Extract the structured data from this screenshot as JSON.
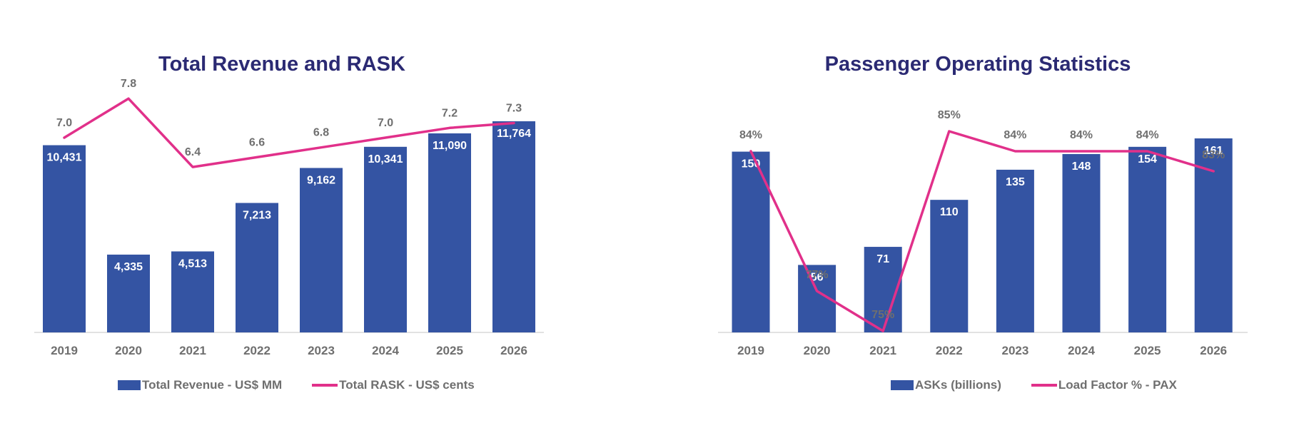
{
  "chart_data": [
    {
      "type": "bar",
      "title": "Total Revenue and RASK",
      "categories": [
        "2019",
        "2020",
        "2021",
        "2022",
        "2023",
        "2024",
        "2025",
        "2026"
      ],
      "series": [
        {
          "name": "Total Revenue - US$ MM",
          "type": "bar",
          "values": [
            10431,
            4335,
            4513,
            7213,
            9162,
            10341,
            11090,
            11764
          ],
          "labels": [
            "10,431",
            "4,335",
            "4,513",
            "7,213",
            "9,162",
            "10,341",
            "11,090",
            "11,764"
          ]
        },
        {
          "name": "Total RASK - US$ cents",
          "type": "line",
          "values": [
            7.0,
            7.8,
            6.4,
            6.6,
            6.8,
            7.0,
            7.2,
            7.3
          ],
          "labels": [
            "7.0",
            "7.8",
            "6.4",
            "6.6",
            "6.8",
            "7.0",
            "7.2",
            "7.3"
          ]
        }
      ],
      "legend_position": "bottom",
      "grid": false,
      "colors": {
        "bar": "#3454a3",
        "line": "#e1308a"
      }
    },
    {
      "type": "bar",
      "title": "Passenger Operating Statistics",
      "categories": [
        "2019",
        "2020",
        "2021",
        "2022",
        "2023",
        "2024",
        "2025",
        "2026"
      ],
      "series": [
        {
          "name": "ASKs (billions)",
          "type": "bar",
          "values": [
            150,
            56,
            71,
            110,
            135,
            148,
            154,
            161
          ],
          "labels": [
            "150",
            "56",
            "71",
            "110",
            "135",
            "148",
            "154",
            "161"
          ]
        },
        {
          "name": "Load Factor % - PAX",
          "type": "line",
          "values": [
            84,
            77,
            75,
            85,
            84,
            84,
            84,
            83
          ],
          "labels": [
            "84%",
            "77%",
            "75%",
            "85%",
            "84%",
            "84%",
            "84%",
            "83%"
          ]
        }
      ],
      "legend_position": "bottom",
      "grid": false,
      "colors": {
        "bar": "#3454a3",
        "line": "#e1308a"
      }
    }
  ]
}
